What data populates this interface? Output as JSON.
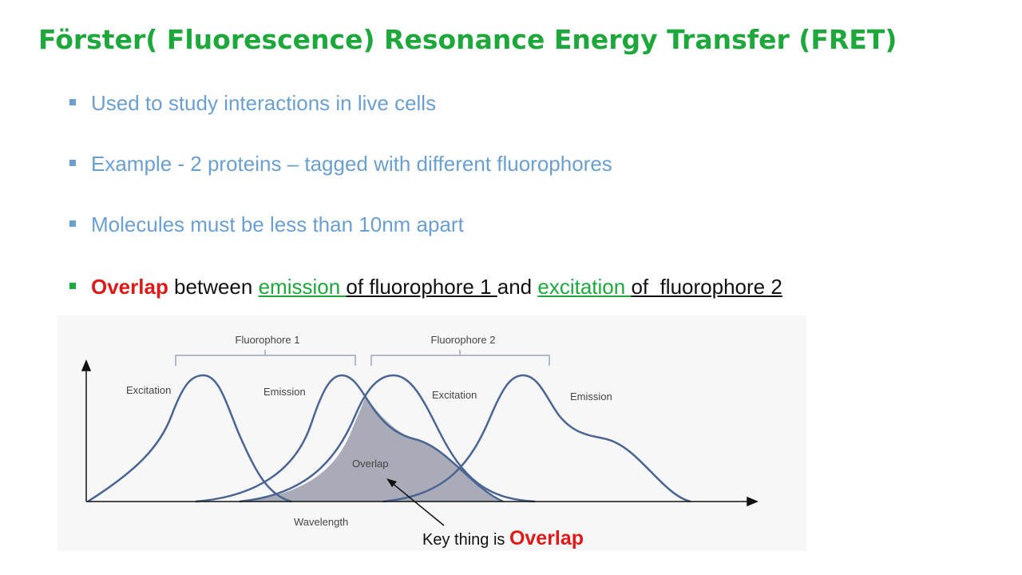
{
  "title": "Förster( Fluorescence) Resonance Energy Transfer (FRET)",
  "bullets": [
    "Used to study interactions in live cells",
    "Example - 2 proteins – tagged with different fluorophores",
    "Molecules must be less than 10nm apart"
  ],
  "last_bullet": [
    "Overlap",
    " between ",
    "emission ",
    "of fluorophore 1 ",
    "and ",
    "excitation ",
    "of  fluorophore 2"
  ],
  "diagram": {
    "groups": [
      "Fluorophore 1",
      "Fluorophore 2"
    ],
    "curves": [
      "Excitation",
      "Emission",
      "Excitation",
      "Emission"
    ],
    "overlap": "Overlap",
    "x_axis": "Wavelength"
  },
  "annotation": [
    "Key thing is ",
    "Overlap"
  ]
}
